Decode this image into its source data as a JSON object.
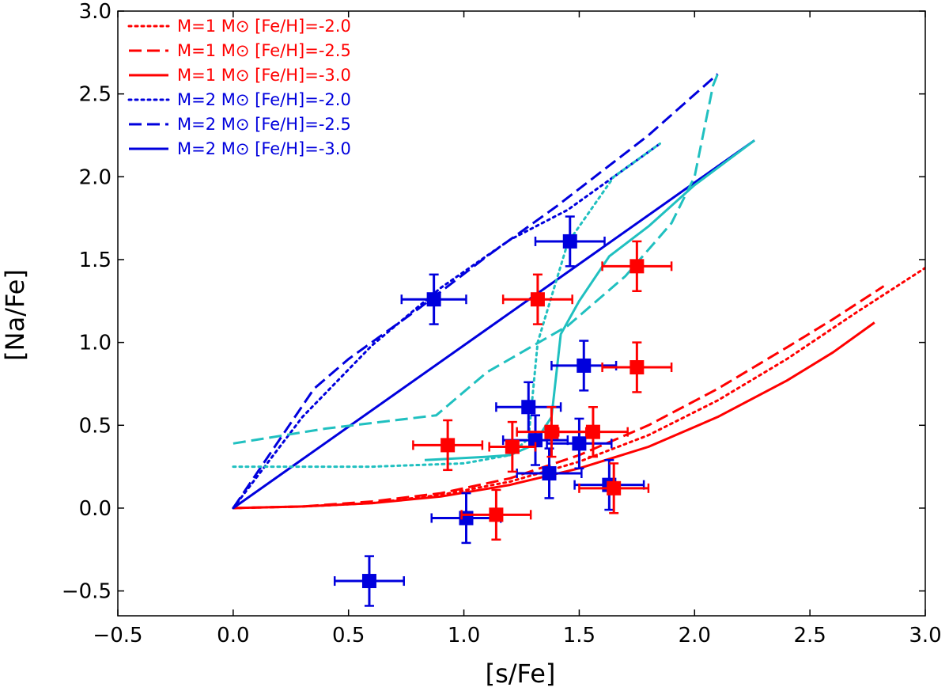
{
  "chart_data": {
    "type": "scatter",
    "xlabel": "[s/Fe]",
    "ylabel": "[Na/Fe]",
    "xlim": [
      -0.5,
      3.0
    ],
    "ylim": [
      -0.65,
      3.0
    ],
    "grid": false,
    "x_ticks": [
      -0.5,
      0.0,
      0.5,
      1.0,
      1.5,
      2.0,
      2.5,
      3.0
    ],
    "x_tick_labels": [
      "−0.5",
      "0.0",
      "0.5",
      "1.0",
      "1.5",
      "2.0",
      "2.5",
      "3.0"
    ],
    "y_ticks": [
      -0.5,
      0.0,
      0.5,
      1.0,
      1.5,
      2.0,
      2.5,
      3.0
    ],
    "y_tick_labels": [
      "−0.5",
      "0.0",
      "0.5",
      "1.0",
      "1.5",
      "2.0",
      "2.5",
      "3.0"
    ],
    "colors": {
      "red": "#ff0000",
      "blue": "#0000dd",
      "cyan": "#20c0c0"
    },
    "legend": {
      "placement": "top-left",
      "entries": [
        {
          "label": "M=1 M⊙ [Fe/H]=-2.0",
          "color": "#ff0000",
          "style": "dotted"
        },
        {
          "label": "M=1 M⊙ [Fe/H]=-2.5",
          "color": "#ff0000",
          "style": "dashed"
        },
        {
          "label": "M=1 M⊙ [Fe/H]=-3.0",
          "color": "#ff0000",
          "style": "solid"
        },
        {
          "label": "M=2 M⊙ [Fe/H]=-2.0",
          "color": "#0000dd",
          "style": "dotted"
        },
        {
          "label": "M=2 M⊙ [Fe/H]=-2.5",
          "color": "#0000dd",
          "style": "dashed"
        },
        {
          "label": "M=2 M⊙ [Fe/H]=-3.0",
          "color": "#0000dd",
          "style": "solid"
        }
      ]
    },
    "lines": [
      {
        "name": "M=1 [Fe/H]=-2.0",
        "color": "#ff0000",
        "style": "dotted",
        "points": [
          [
            0,
            0
          ],
          [
            0.3,
            0.01
          ],
          [
            0.6,
            0.03
          ],
          [
            0.9,
            0.08
          ],
          [
            1.2,
            0.16
          ],
          [
            1.5,
            0.28
          ],
          [
            1.8,
            0.44
          ],
          [
            2.1,
            0.65
          ],
          [
            2.4,
            0.9
          ],
          [
            2.7,
            1.18
          ],
          [
            3.0,
            1.45
          ]
        ]
      },
      {
        "name": "M=1 [Fe/H]=-2.5",
        "color": "#ff0000",
        "style": "dashed",
        "points": [
          [
            0,
            0
          ],
          [
            0.3,
            0.01
          ],
          [
            0.6,
            0.04
          ],
          [
            0.9,
            0.09
          ],
          [
            1.2,
            0.18
          ],
          [
            1.5,
            0.32
          ],
          [
            1.8,
            0.5
          ],
          [
            2.1,
            0.72
          ],
          [
            2.4,
            0.97
          ],
          [
            2.6,
            1.14
          ],
          [
            2.82,
            1.34
          ]
        ]
      },
      {
        "name": "M=1 [Fe/H]=-3.0",
        "color": "#ff0000",
        "style": "solid",
        "points": [
          [
            0,
            0
          ],
          [
            0.3,
            0.01
          ],
          [
            0.6,
            0.03
          ],
          [
            0.9,
            0.07
          ],
          [
            1.2,
            0.14
          ],
          [
            1.5,
            0.24
          ],
          [
            1.8,
            0.37
          ],
          [
            2.1,
            0.55
          ],
          [
            2.4,
            0.77
          ],
          [
            2.6,
            0.94
          ],
          [
            2.78,
            1.12
          ]
        ]
      },
      {
        "name": "M=2 [Fe/H]=-2.0",
        "color": "#0000dd",
        "style": "dotted",
        "points": [
          [
            0,
            0
          ],
          [
            0.3,
            0.55
          ],
          [
            0.6,
            0.98
          ],
          [
            0.9,
            1.33
          ],
          [
            1.2,
            1.62
          ],
          [
            1.45,
            1.8
          ],
          [
            1.85,
            2.2
          ]
        ]
      },
      {
        "name": "M=2 [Fe/H]=-2.5",
        "color": "#0000dd",
        "style": "dashed",
        "points": [
          [
            0,
            0
          ],
          [
            0.35,
            0.72
          ],
          [
            0.5,
            0.9
          ],
          [
            0.8,
            1.2
          ],
          [
            1.1,
            1.52
          ],
          [
            1.4,
            1.82
          ],
          [
            1.8,
            2.25
          ],
          [
            2.1,
            2.62
          ]
        ]
      },
      {
        "name": "M=2 [Fe/H]=-3.0",
        "color": "#0000dd",
        "style": "solid",
        "points": [
          [
            0,
            0
          ],
          [
            2.26,
            2.22
          ]
        ]
      },
      {
        "name": "cyan dotted",
        "color": "#20c0c0",
        "style": "dotted",
        "points": [
          [
            0.0,
            0.25
          ],
          [
            0.6,
            0.25
          ],
          [
            1.0,
            0.27
          ],
          [
            1.2,
            0.32
          ],
          [
            1.28,
            0.42
          ],
          [
            1.32,
            1.0
          ],
          [
            1.45,
            1.6
          ],
          [
            1.65,
            2.0
          ],
          [
            1.85,
            2.2
          ]
        ]
      },
      {
        "name": "cyan dashed",
        "color": "#20c0c0",
        "style": "dashed",
        "points": [
          [
            0.0,
            0.39
          ],
          [
            0.4,
            0.48
          ],
          [
            0.88,
            0.56
          ],
          [
            1.1,
            0.82
          ],
          [
            1.45,
            1.1
          ],
          [
            1.7,
            1.4
          ],
          [
            1.9,
            1.72
          ],
          [
            2.0,
            2.0
          ],
          [
            2.08,
            2.55
          ],
          [
            2.1,
            2.62
          ]
        ]
      },
      {
        "name": "cyan solid",
        "color": "#20c0c0",
        "style": "solid",
        "points": [
          [
            0.83,
            0.29
          ],
          [
            1.1,
            0.31
          ],
          [
            1.2,
            0.32
          ],
          [
            1.3,
            0.38
          ],
          [
            1.38,
            0.55
          ],
          [
            1.42,
            1.05
          ],
          [
            1.5,
            1.25
          ],
          [
            1.63,
            1.52
          ],
          [
            1.8,
            1.7
          ],
          [
            2.0,
            1.95
          ],
          [
            2.26,
            2.22
          ]
        ]
      }
    ],
    "points": [
      {
        "series": "blue",
        "x": 0.87,
        "y": 1.26,
        "xerr": 0.14,
        "yerr": 0.15
      },
      {
        "series": "blue",
        "x": 1.46,
        "y": 1.61,
        "xerr": 0.15,
        "yerr": 0.15
      },
      {
        "series": "blue",
        "x": 1.52,
        "y": 0.86,
        "xerr": 0.14,
        "yerr": 0.15
      },
      {
        "series": "blue",
        "x": 1.28,
        "y": 0.61,
        "xerr": 0.14,
        "yerr": 0.15
      },
      {
        "series": "blue",
        "x": 1.5,
        "y": 0.39,
        "xerr": 0.14,
        "yerr": 0.15
      },
      {
        "series": "blue",
        "x": 1.31,
        "y": 0.41,
        "xerr": 0.14,
        "yerr": 0.15
      },
      {
        "series": "blue",
        "x": 1.37,
        "y": 0.21,
        "xerr": 0.14,
        "yerr": 0.15
      },
      {
        "series": "blue",
        "x": 1.63,
        "y": 0.14,
        "xerr": 0.15,
        "yerr": 0.15
      },
      {
        "series": "blue",
        "x": 1.01,
        "y": -0.06,
        "xerr": 0.15,
        "yerr": 0.15
      },
      {
        "series": "blue",
        "x": 0.59,
        "y": -0.44,
        "xerr": 0.15,
        "yerr": 0.15
      },
      {
        "series": "red",
        "x": 1.75,
        "y": 1.46,
        "xerr": 0.15,
        "yerr": 0.15
      },
      {
        "series": "red",
        "x": 1.32,
        "y": 1.26,
        "xerr": 0.15,
        "yerr": 0.15
      },
      {
        "series": "red",
        "x": 1.75,
        "y": 0.85,
        "xerr": 0.15,
        "yerr": 0.15
      },
      {
        "series": "red",
        "x": 0.93,
        "y": 0.38,
        "xerr": 0.15,
        "yerr": 0.15
      },
      {
        "series": "red",
        "x": 1.21,
        "y": 0.37,
        "xerr": 0.1,
        "yerr": 0.15
      },
      {
        "series": "red",
        "x": 1.38,
        "y": 0.46,
        "xerr": 0.15,
        "yerr": 0.15
      },
      {
        "series": "red",
        "x": 1.56,
        "y": 0.46,
        "xerr": 0.15,
        "yerr": 0.15
      },
      {
        "series": "red",
        "x": 1.65,
        "y": 0.12,
        "xerr": 0.15,
        "yerr": 0.15
      },
      {
        "series": "red",
        "x": 1.14,
        "y": -0.04,
        "xerr": 0.15,
        "yerr": 0.15
      }
    ]
  }
}
